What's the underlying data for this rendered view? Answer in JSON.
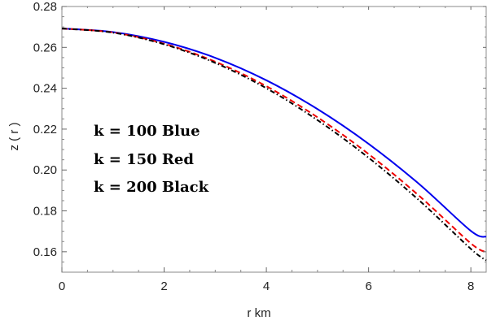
{
  "chart_data": {
    "type": "line",
    "title": "",
    "xlabel": "r  km",
    "ylabel": "z ( r )",
    "xlim": [
      0,
      8.3
    ],
    "ylim": [
      0.15,
      0.28
    ],
    "xticks": [
      0,
      2,
      4,
      6,
      8
    ],
    "xtick_labels": [
      "0",
      "2",
      "4",
      "6",
      "8"
    ],
    "yticks": [
      0.16,
      0.18,
      0.2,
      0.22,
      0.24,
      0.26,
      0.28
    ],
    "ytick_labels": [
      "0.16",
      "0.18",
      "0.20",
      "0.22",
      "0.24",
      "0.26",
      "0.28"
    ],
    "grid": false,
    "annotations": [
      "k = 100  Blue",
      "k = 150  Red",
      "k = 200  Black"
    ],
    "series": [
      {
        "color": "#0000ee",
        "linestyle": "solid",
        "x": [
          0,
          1,
          2,
          3,
          4,
          5,
          6,
          7,
          8,
          8.3
        ],
        "y": [
          0.2692,
          0.2675,
          0.2627,
          0.2549,
          0.2439,
          0.2298,
          0.2128,
          0.1929,
          0.1702,
          0.1673
        ]
      },
      {
        "color": "#ee0000",
        "linestyle": "dashed",
        "x": [
          0,
          1,
          2,
          3,
          4,
          5,
          6,
          7,
          8,
          8.3
        ],
        "y": [
          0.2692,
          0.2673,
          0.2618,
          0.253,
          0.241,
          0.2258,
          0.2078,
          0.1871,
          0.1641,
          0.1598
        ]
      },
      {
        "color": "#000000",
        "linestyle": "dashdot",
        "x": [
          0,
          1,
          2,
          3,
          4,
          5,
          6,
          7,
          8,
          8.3
        ],
        "y": [
          0.2692,
          0.2672,
          0.2615,
          0.2524,
          0.24,
          0.2244,
          0.206,
          0.1849,
          0.1614,
          0.1558
        ]
      }
    ]
  }
}
